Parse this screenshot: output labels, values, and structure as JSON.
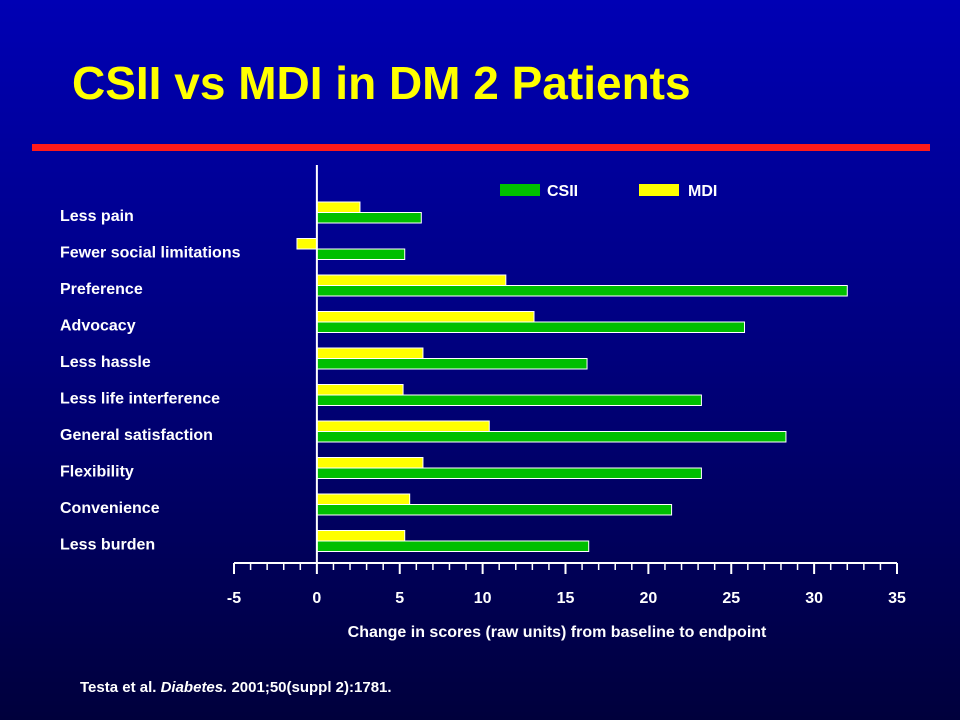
{
  "slide": {
    "title": "CSII vs MDI in DM 2 Patients",
    "citation_authors": "Testa et al. ",
    "citation_journal": "Diabetes.",
    "citation_rest": " 2001;50(suppl 2):1781."
  },
  "chart_data": {
    "type": "bar",
    "orientation": "horizontal",
    "title": "",
    "xlabel": "Change in scores (raw units) from baseline to endpoint",
    "ylabel": "",
    "xlim": [
      -5,
      35
    ],
    "xticks": [
      -5,
      0,
      5,
      10,
      15,
      20,
      25,
      30,
      35
    ],
    "grid": false,
    "legend_position": "top",
    "categories": [
      "Less pain",
      "Fewer social limitations",
      "Preference",
      "Advocacy",
      "Less hassle",
      "Less life interference",
      "General satisfaction",
      "Flexibility",
      "Convenience",
      "Less burden"
    ],
    "series": [
      {
        "name": "MDI",
        "color": "#ffff00",
        "values": [
          2.6,
          -1.2,
          11.4,
          13.1,
          6.4,
          5.2,
          10.4,
          6.4,
          5.6,
          5.3
        ]
      },
      {
        "name": "CSII",
        "color": "#00bf00",
        "values": [
          6.3,
          5.3,
          32.0,
          25.8,
          16.3,
          23.2,
          28.3,
          23.2,
          21.4,
          16.4
        ]
      }
    ],
    "legend_order": [
      "CSII",
      "MDI"
    ]
  }
}
